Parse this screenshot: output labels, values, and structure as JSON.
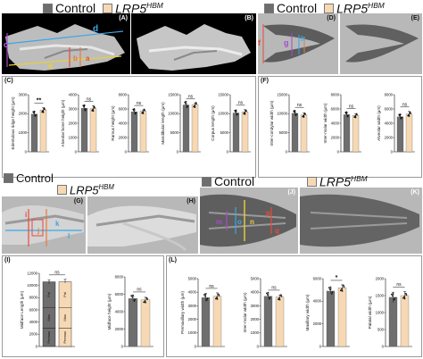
{
  "legends": {
    "control": "Control",
    "lrp_italic": "LRP5",
    "lrp_sup": "HBM"
  },
  "panel_labels": {
    "A": "(A)",
    "B": "(B)",
    "C": "(C)",
    "D": "(D)",
    "E": "(E)",
    "F": "(F)",
    "G": "(G)",
    "H": "(H)",
    "I": "(I)",
    "J": "(J)",
    "K": "(K)",
    "L": "(L)"
  },
  "annotations": {
    "a": "a",
    "b": "b",
    "c": "c",
    "d": "d",
    "e": "e",
    "f": "f",
    "g": "g",
    "h": "h",
    "i": "i",
    "j": "j",
    "k": "k",
    "l": "l",
    "m": "m",
    "n": "n",
    "o": "o",
    "p": "p",
    "q": "q"
  },
  "stack": {
    "segments": [
      "Premax",
      "Max",
      "Pal"
    ]
  },
  "colors": {
    "control": "#6e6e6e",
    "lrp": "#f6d9b4",
    "point": "#111111"
  },
  "chart_data": [
    {
      "id": "c1",
      "type": "bar",
      "ylabel": "Edentulous ridge height (μm)",
      "ylim": [
        0,
        3000
      ],
      "ticks": [
        0,
        1000,
        2000,
        3000
      ],
      "categories": [
        "Control",
        "LRP5 HBM"
      ],
      "values": [
        1980,
        2200
      ],
      "err": [
        120,
        110
      ],
      "sig": "**"
    },
    {
      "id": "c2",
      "type": "bar",
      "ylabel": "Alveolar bone height (μm)",
      "ylim": [
        0,
        4000
      ],
      "ticks": [
        0,
        1000,
        2000,
        3000,
        4000
      ],
      "categories": [
        "Control",
        "LRP5 HBM"
      ],
      "values": [
        3050,
        3030
      ],
      "err": [
        170,
        190
      ],
      "sig": "ns"
    },
    {
      "id": "c3",
      "type": "bar",
      "ylabel": "Ramus height (μm)",
      "ylim": [
        0,
        8000
      ],
      "ticks": [
        0,
        2000,
        4000,
        6000,
        8000
      ],
      "categories": [
        "Control",
        "LRP5 HBM"
      ],
      "values": [
        5600,
        5700
      ],
      "err": [
        180,
        160
      ],
      "sig": "ns"
    },
    {
      "id": "c4",
      "type": "bar",
      "ylabel": "Mandibular length (μm)",
      "ylim": [
        0,
        15000
      ],
      "ticks": [
        0,
        5000,
        10000,
        15000
      ],
      "categories": [
        "Control",
        "LRP5 HBM"
      ],
      "values": [
        12300,
        12400
      ],
      "err": [
        350,
        300
      ],
      "sig": "ns"
    },
    {
      "id": "c5",
      "type": "bar",
      "ylabel": "Corpus length (μm)",
      "ylim": [
        0,
        15000
      ],
      "ticks": [
        0,
        5000,
        10000,
        15000
      ],
      "categories": [
        "Control",
        "LRP5 HBM"
      ],
      "values": [
        10200,
        10500
      ],
      "err": [
        450,
        550
      ],
      "sig": "ns"
    },
    {
      "id": "f1",
      "type": "bar",
      "ylabel": "Inter-condylar width (μm)",
      "ylim": [
        0,
        15000
      ],
      "ticks": [
        0,
        5000,
        10000,
        15000
      ],
      "categories": [
        "Control",
        "LRP5 HBM"
      ],
      "values": [
        10100,
        9700
      ],
      "err": [
        400,
        450
      ],
      "sig": "ns"
    },
    {
      "id": "f2",
      "type": "bar",
      "ylabel": "Inter-molar width (μm)",
      "ylim": [
        0,
        8000
      ],
      "ticks": [
        0,
        2000,
        4000,
        6000,
        8000
      ],
      "categories": [
        "Control",
        "LRP5 HBM"
      ],
      "values": [
        5200,
        5100
      ],
      "err": [
        220,
        200
      ],
      "sig": "ns"
    },
    {
      "id": "f3",
      "type": "bar",
      "ylabel": "Alveolar width (μm)",
      "ylim": [
        0,
        8000
      ],
      "ticks": [
        0,
        2000,
        4000,
        6000,
        8000
      ],
      "categories": [
        "Control",
        "LRP5 HBM"
      ],
      "values": [
        4900,
        5300
      ],
      "err": [
        300,
        350
      ],
      "sig": "ns"
    },
    {
      "id": "i1",
      "type": "bar",
      "ylabel": "Midface Length (μm)",
      "ylim": [
        0,
        12000
      ],
      "ticks": [
        0,
        2000,
        4000,
        6000,
        8000,
        10000,
        12000
      ],
      "categories": [
        "Control",
        "LRP5 HBM"
      ],
      "values": [
        10600,
        10700
      ],
      "err": [
        300,
        300
      ],
      "sig": "ns",
      "stacked": [
        3000,
        3400,
        4200
      ]
    },
    {
      "id": "i2",
      "type": "bar",
      "ylabel": "Midface height (μm)",
      "ylim": [
        0,
        8000
      ],
      "ticks": [
        0,
        2000,
        4000,
        6000,
        8000
      ],
      "categories": [
        "Control",
        "LRP5 HBM"
      ],
      "values": [
        5500,
        5350
      ],
      "err": [
        250,
        300
      ],
      "sig": "ns"
    },
    {
      "id": "l1",
      "type": "bar",
      "ylabel": "Premaxillary width (μm)",
      "ylim": [
        0,
        5000
      ],
      "ticks": [
        0,
        1000,
        2000,
        3000,
        4000,
        5000
      ],
      "categories": [
        "Control",
        "LRP5 HBM"
      ],
      "values": [
        3600,
        3700
      ],
      "err": [
        300,
        250
      ],
      "sig": "ns"
    },
    {
      "id": "l2",
      "type": "bar",
      "ylabel": "Inter-molar width (μm)",
      "ylim": [
        0,
        5000
      ],
      "ticks": [
        0,
        1000,
        2000,
        3000,
        4000,
        5000
      ],
      "categories": [
        "Control",
        "LRP5 HBM"
      ],
      "values": [
        3700,
        3650
      ],
      "err": [
        120,
        150
      ],
      "sig": "ns"
    },
    {
      "id": "l3",
      "type": "bar",
      "ylabel": "Maxillary width (μm)",
      "ylim": [
        0,
        6000
      ],
      "ticks": [
        0,
        2000,
        4000,
        6000
      ],
      "categories": [
        "Control",
        "LRP5 HBM"
      ],
      "values": [
        4900,
        5200
      ],
      "err": [
        200,
        250
      ],
      "sig": "*"
    },
    {
      "id": "l4",
      "type": "bar",
      "ylabel": "Palatal width (μm)",
      "ylim": [
        0,
        2000
      ],
      "ticks": [
        0,
        500,
        1000,
        1500,
        2000
      ],
      "categories": [
        "Control",
        "LRP5 HBM"
      ],
      "values": [
        1450,
        1500
      ],
      "err": [
        150,
        120
      ],
      "sig": "ns"
    }
  ]
}
